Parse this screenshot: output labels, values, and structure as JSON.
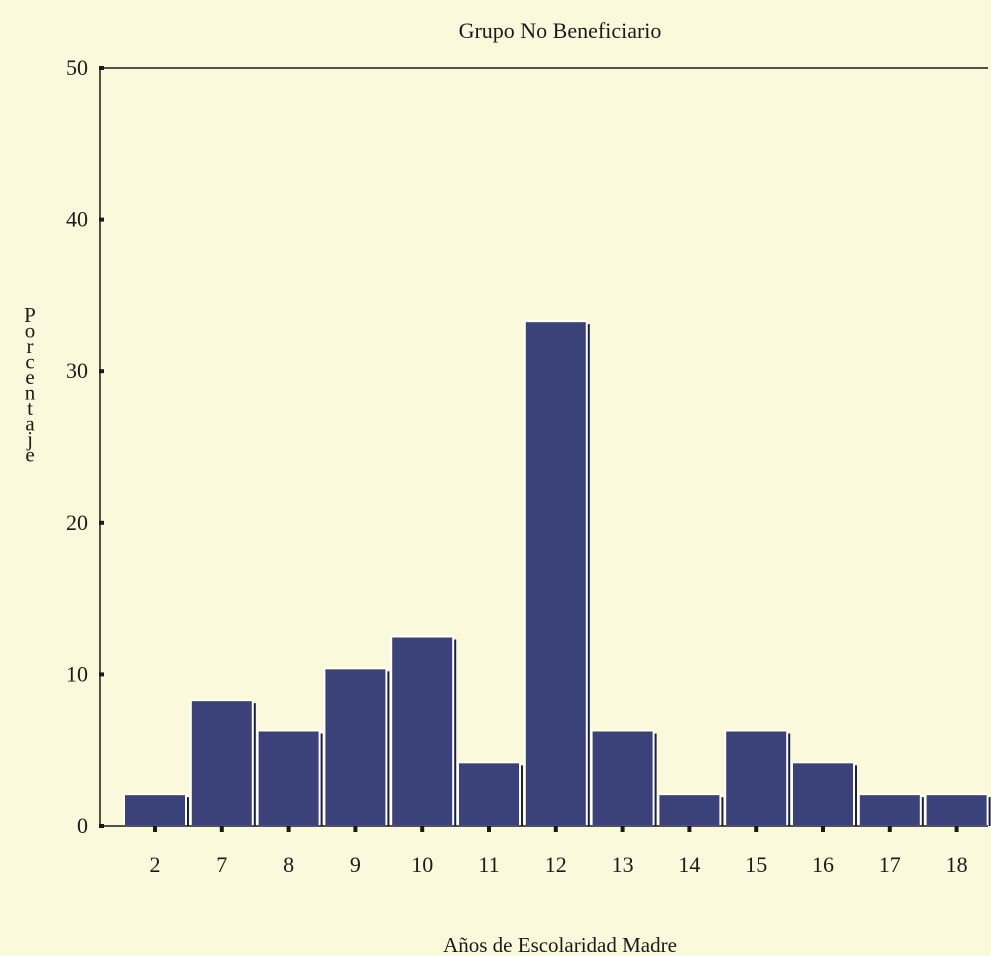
{
  "colors": {
    "background": "#fbf9dc",
    "bar": "#3b4179",
    "axis": "#1a1a1a"
  },
  "chart_data": {
    "type": "bar",
    "title": "Grupo No Beneficiario",
    "xlabel": "Años de Escolaridad Madre",
    "ylabel": "Porcentaje",
    "categories": [
      "2",
      "7",
      "8",
      "9",
      "10",
      "11",
      "12",
      "13",
      "14",
      "15",
      "16",
      "17",
      "18"
    ],
    "values": [
      2.1,
      8.3,
      6.3,
      10.4,
      12.5,
      4.2,
      33.3,
      6.3,
      2.1,
      6.3,
      4.2,
      2.1,
      2.1
    ],
    "ylim": [
      0,
      50
    ],
    "yticks": [
      "0",
      "10",
      "20",
      "30",
      "40",
      "50"
    ],
    "grid": false,
    "legend": "none"
  }
}
